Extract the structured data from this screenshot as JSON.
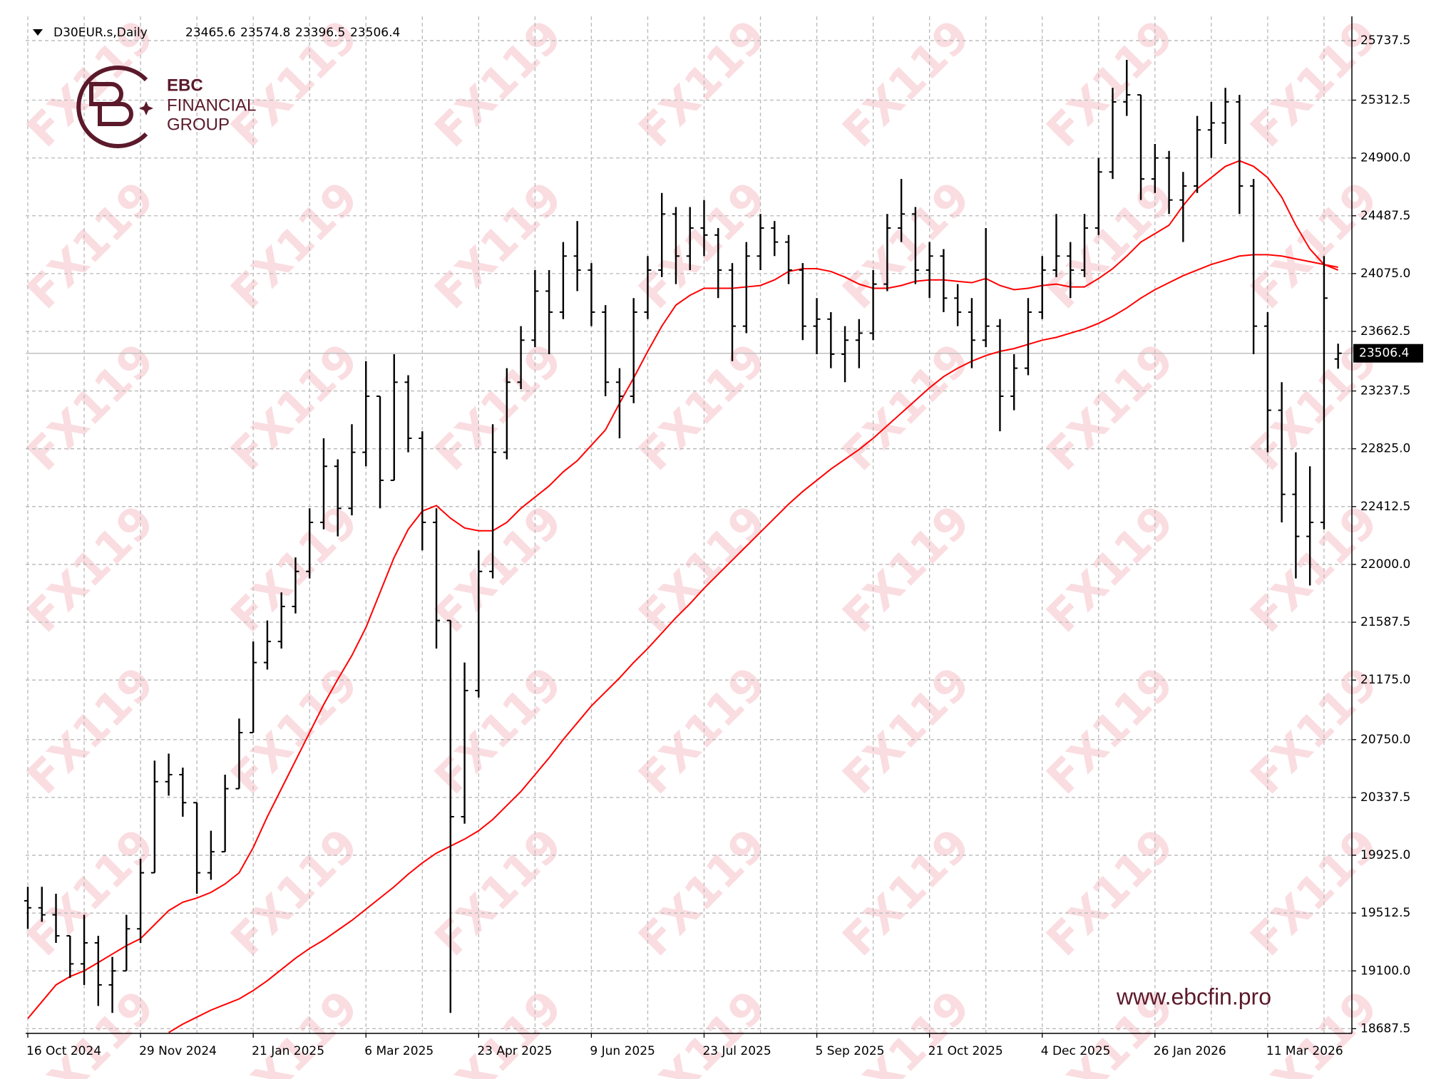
{
  "chart_data": {
    "type": "ohlc",
    "symbol": "D30EUR.s,Daily",
    "watermark": "FX119",
    "brand": {
      "name": "EBC",
      "line1": "FINANCIAL",
      "line2": "GROUP",
      "url": "www.ebcfin.pro"
    },
    "color": "#000000",
    "grid": true,
    "categories": [
      "16 Oct 2024",
      null,
      null,
      null,
      null,
      null,
      null,
      null,
      "29 Nov 2024",
      null,
      null,
      null,
      null,
      null,
      null,
      null,
      "21 Jan 2025",
      null,
      null,
      null,
      null,
      null,
      null,
      null,
      "6 Mar 2025",
      null,
      null,
      null,
      null,
      null,
      null,
      null,
      "23 Apr 2025",
      null,
      null,
      null,
      null,
      null,
      null,
      null,
      "9 Jun 2025",
      null,
      null,
      null,
      null,
      null,
      null,
      null,
      "23 Jul 2025",
      null,
      null,
      null,
      null,
      null,
      null,
      null,
      "5 Sep 2025",
      null,
      null,
      null,
      null,
      null,
      null,
      null,
      "21 Oct 2025",
      null,
      null,
      null,
      null,
      null,
      null,
      null,
      "4 Dec 2025",
      null,
      null,
      null,
      null,
      null,
      null,
      null,
      "26 Jan 2026",
      null,
      null,
      null,
      null,
      null,
      null,
      null,
      "11 Mar 2026",
      null,
      null,
      null,
      null,
      null
    ],
    "open": [
      19600,
      19550,
      19500,
      19350,
      19150,
      19300,
      19000,
      19100,
      19400,
      19800,
      20450,
      20500,
      20300,
      19800,
      19950,
      20400,
      20800,
      21300,
      21450,
      21700,
      21950,
      22300,
      22700,
      22400,
      22800,
      23200,
      22600,
      23300,
      22900,
      22300,
      21600,
      20200,
      21100,
      21950,
      22800,
      23300,
      23600,
      23950,
      23800,
      24200,
      24100,
      23800,
      23300,
      23200,
      23800,
      24100,
      24500,
      24200,
      24400,
      24350,
      24100,
      23700,
      24200,
      24400,
      24300,
      24100,
      23700,
      23750,
      23500,
      23600,
      23650,
      24000,
      24400,
      24500,
      24100,
      24200,
      23900,
      23800,
      23600,
      23700,
      23200,
      23400,
      23800,
      24100,
      24200,
      24100,
      24400,
      24800,
      25300,
      25350,
      24750,
      24900,
      24600,
      24700,
      25100,
      25150,
      25300,
      24700,
      23700,
      23100,
      22500,
      22200,
      22300,
      23465.6
    ],
    "high": [
      19700,
      19700,
      19650,
      19350,
      19500,
      19350,
      19200,
      19500,
      19900,
      20600,
      20650,
      20550,
      20300,
      20100,
      20500,
      20900,
      21450,
      21600,
      21800,
      22050,
      22400,
      22900,
      22750,
      23000,
      23450,
      23200,
      23500,
      23350,
      22950,
      22400,
      21600,
      21300,
      22100,
      23000,
      23400,
      23700,
      24100,
      24100,
      24300,
      24450,
      24150,
      23850,
      23400,
      23900,
      24200,
      24650,
      24550,
      24550,
      24600,
      24400,
      24150,
      24300,
      24500,
      24450,
      24350,
      24150,
      23900,
      23800,
      23700,
      23750,
      24100,
      24500,
      24750,
      24550,
      24300,
      24250,
      24000,
      23900,
      24400,
      23750,
      23500,
      23900,
      24200,
      24500,
      24300,
      24500,
      24900,
      25400,
      25600,
      25350,
      25000,
      24950,
      24800,
      25200,
      25300,
      25400,
      25350,
      24750,
      23800,
      23300,
      22800,
      22700,
      24200,
      23574.8
    ],
    "low": [
      19400,
      19450,
      19300,
      19050,
      19000,
      18850,
      18800,
      19100,
      19300,
      19800,
      20350,
      20200,
      19650,
      19750,
      19950,
      20400,
      20800,
      21250,
      21400,
      21650,
      21900,
      22250,
      22200,
      22350,
      22700,
      22400,
      22600,
      22800,
      22100,
      21400,
      18800,
      20150,
      21050,
      21900,
      22750,
      23250,
      23550,
      23500,
      23750,
      23950,
      23700,
      23200,
      22900,
      23150,
      23750,
      24050,
      24000,
      24100,
      24200,
      23900,
      23450,
      23650,
      24100,
      24200,
      24000,
      23600,
      23500,
      23400,
      23300,
      23400,
      23600,
      23950,
      24300,
      24000,
      23900,
      23800,
      23700,
      23400,
      23550,
      22950,
      23100,
      23350,
      23750,
      24050,
      23900,
      24050,
      24350,
      24750,
      25200,
      24600,
      24650,
      24500,
      24300,
      24650,
      24900,
      25000,
      24500,
      23500,
      22800,
      22300,
      21900,
      21850,
      22250,
      23396.5
    ],
    "close": [
      19550,
      19500,
      19350,
      19150,
      19300,
      19000,
      19100,
      19400,
      19800,
      20450,
      20500,
      20300,
      19800,
      19950,
      20400,
      20800,
      21300,
      21450,
      21700,
      21950,
      22300,
      22700,
      22400,
      22800,
      23200,
      22600,
      23300,
      22900,
      22300,
      21600,
      20200,
      21100,
      21950,
      22800,
      23300,
      23600,
      23950,
      23800,
      24200,
      24100,
      23800,
      23300,
      23200,
      23800,
      24100,
      24500,
      24200,
      24400,
      24350,
      24100,
      23700,
      24200,
      24400,
      24300,
      24100,
      23700,
      23750,
      23500,
      23600,
      23650,
      24000,
      24400,
      24500,
      24100,
      24200,
      23900,
      23800,
      23600,
      23700,
      23200,
      23400,
      23800,
      24100,
      24200,
      24100,
      24400,
      24800,
      25300,
      25350,
      24750,
      24900,
      24600,
      24700,
      25100,
      25150,
      25300,
      24700,
      23700,
      23100,
      22500,
      22200,
      22300,
      23900,
      23506.4
    ],
    "overlays": [
      {
        "color": "#ff0000",
        "values": [
          18760,
          18880,
          19000,
          19060,
          19100,
          19160,
          19220,
          19280,
          19330,
          19430,
          19530,
          19590,
          19620,
          19660,
          19720,
          19800,
          19980,
          20200,
          20400,
          20600,
          20800,
          21000,
          21180,
          21350,
          21550,
          21800,
          22050,
          22250,
          22380,
          22420,
          22330,
          22260,
          22240,
          22240,
          22300,
          22400,
          22480,
          22560,
          22660,
          22740,
          22850,
          22960,
          23150,
          23330,
          23520,
          23700,
          23850,
          23920,
          23970,
          23970,
          23970,
          23980,
          23990,
          24030,
          24090,
          24110,
          24110,
          24090,
          24050,
          24000,
          23970,
          23970,
          23990,
          24020,
          24030,
          24030,
          24020,
          24010,
          24040,
          23990,
          23960,
          23970,
          23990,
          24000,
          23980,
          23980,
          24040,
          24110,
          24200,
          24300,
          24360,
          24420,
          24560,
          24680,
          24760,
          24840,
          24880,
          24840,
          24760,
          24620,
          24420,
          24250,
          24140,
          24100
        ]
      },
      {
        "color": "#ff0000",
        "values": [
          null,
          null,
          null,
          null,
          null,
          null,
          null,
          null,
          null,
          null,
          18660,
          18720,
          18770,
          18820,
          18860,
          18900,
          18960,
          19030,
          19110,
          19190,
          19260,
          19320,
          19390,
          19460,
          19540,
          19620,
          19700,
          19790,
          19870,
          19940,
          19990,
          20040,
          20100,
          20180,
          20280,
          20380,
          20500,
          20620,
          20750,
          20870,
          20990,
          21090,
          21190,
          21300,
          21400,
          21510,
          21620,
          21720,
          21830,
          21930,
          22030,
          22130,
          22230,
          22330,
          22430,
          22520,
          22600,
          22680,
          22750,
          22820,
          22900,
          22990,
          23080,
          23170,
          23260,
          23340,
          23400,
          23450,
          23490,
          23520,
          23540,
          23570,
          23600,
          23620,
          23650,
          23680,
          23720,
          23770,
          23830,
          23900,
          23960,
          24010,
          24060,
          24100,
          24140,
          24170,
          24200,
          24210,
          24210,
          24200,
          24180,
          24160,
          24140,
          24120
        ]
      }
    ],
    "price_line_color": "#c0c0c0",
    "ylim": [
      18654,
      25910
    ],
    "yticks": [
      18687.5,
      {
        "value": 19100,
        "label": "19100.0"
      },
      19512.5,
      {
        "value": 19925,
        "label": "19925.0"
      },
      20337.5,
      {
        "value": 20750,
        "label": "20750.0"
      },
      {
        "value": 21175,
        "label": "21175.0"
      },
      21587.5,
      {
        "value": 22000,
        "label": "22000.0"
      },
      22412.5,
      {
        "value": 22825,
        "label": "22825.0"
      },
      23237.5,
      23662.5,
      {
        "value": 24075,
        "label": "24075.0"
      },
      24487.5,
      {
        "value": 24900,
        "label": "24900.0"
      },
      25312.5,
      25737.5
    ]
  }
}
